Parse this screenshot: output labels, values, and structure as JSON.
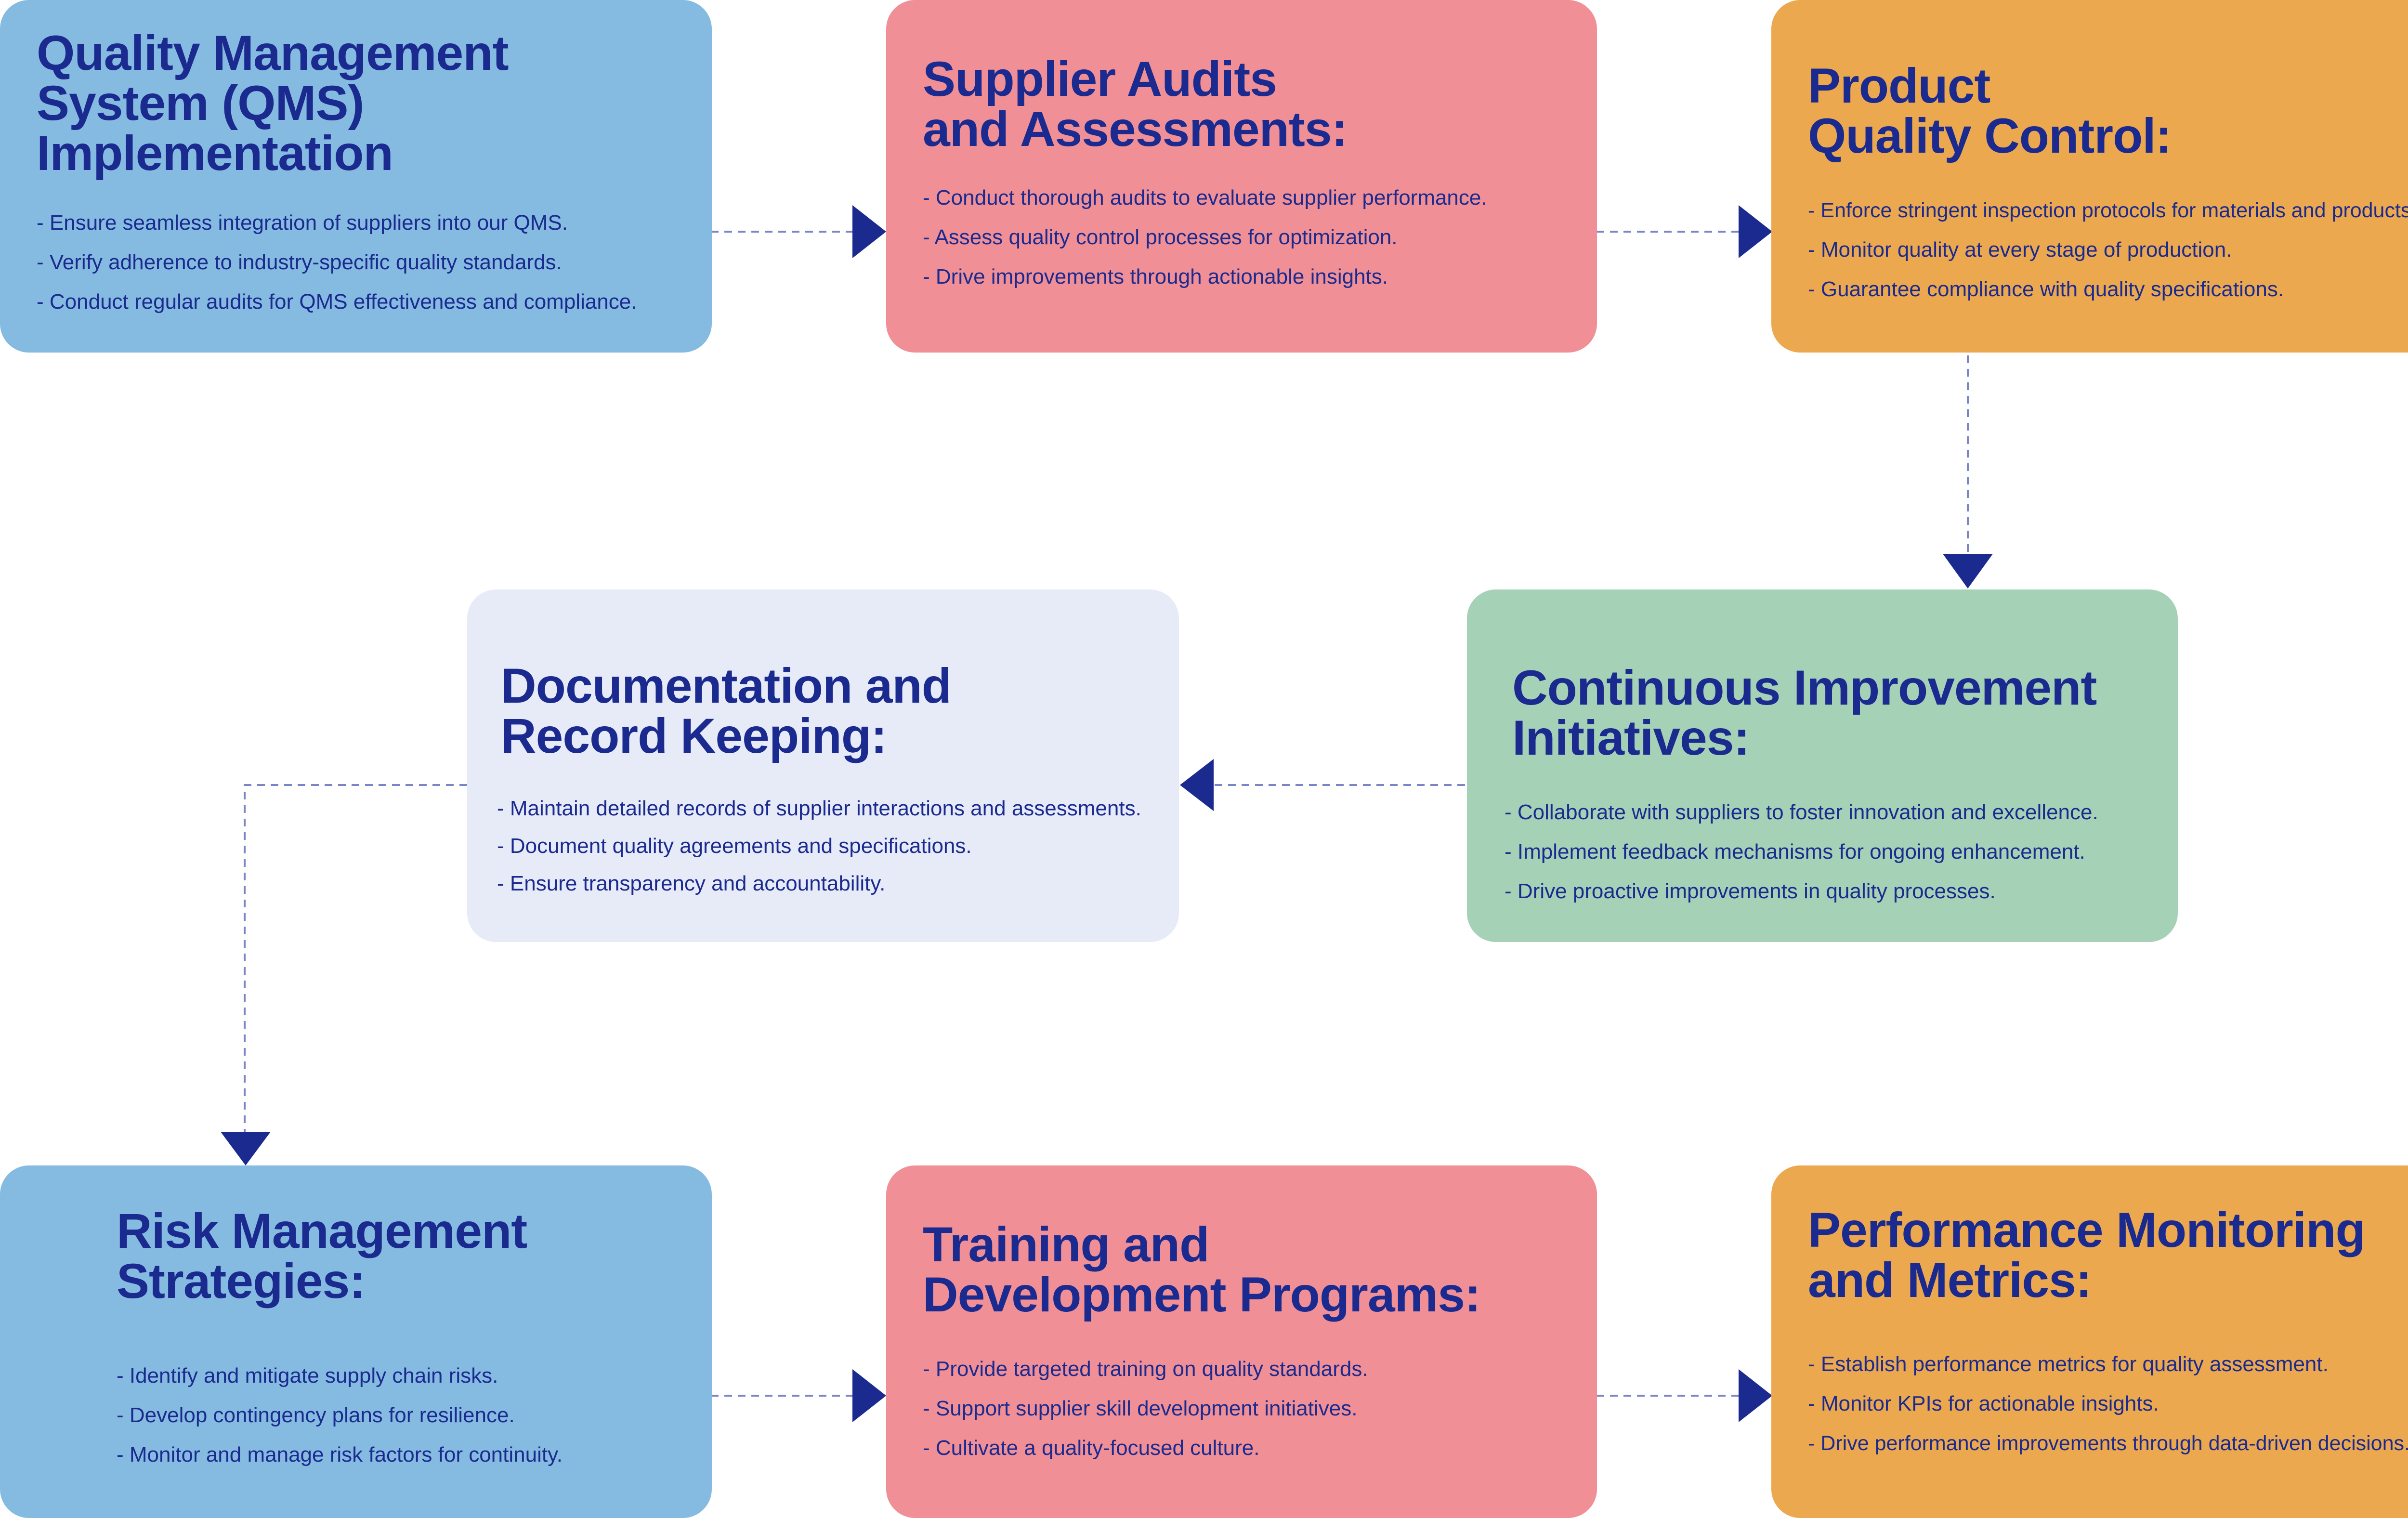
{
  "colors": {
    "ink": "#1b2a8f",
    "blue": "#85bbe0",
    "pink": "#f08f95",
    "orange": "#eba84e",
    "green": "#a5d1b6",
    "lavender": "#e7ebf8",
    "connector": "#7a85c8"
  },
  "cards": [
    {
      "title": "Quality Management\nSystem (QMS)\nImplementation",
      "items": [
        "Ensure seamless integration of suppliers into our QMS.",
        "Verify adherence to industry-specific quality standards.",
        "Conduct regular audits for QMS effectiveness and compliance."
      ]
    },
    {
      "title": "Supplier Audits\nand Assessments:",
      "items": [
        "Conduct thorough audits to evaluate supplier performance.",
        "Assess quality control processes for optimization.",
        "Drive improvements through actionable insights."
      ]
    },
    {
      "title": "Product\nQuality Control:",
      "items": [
        "Enforce stringent inspection protocols for materials and products.",
        "Monitor quality at every stage of production.",
        "Guarantee compliance with quality specifications."
      ]
    },
    {
      "title": "Continuous Improvement\nInitiatives:",
      "items": [
        "Collaborate with suppliers to foster innovation and excellence.",
        "Implement feedback mechanisms for ongoing enhancement.",
        "Drive proactive improvements in quality processes."
      ]
    },
    {
      "title": "Documentation and\nRecord Keeping:",
      "items": [
        "Maintain detailed records of supplier interactions and assessments.",
        "Document quality agreements and specifications.",
        "Ensure transparency and accountability."
      ]
    },
    {
      "title": "Risk Management\nStrategies:",
      "items": [
        "Identify and mitigate supply chain risks.",
        "Develop contingency plans for resilience.",
        "Monitor and manage risk factors for continuity."
      ]
    },
    {
      "title": "Training and\nDevelopment Programs:",
      "items": [
        "Provide targeted training on quality standards.",
        "Support supplier skill development initiatives.",
        "Cultivate a quality-focused culture."
      ]
    },
    {
      "title": "Performance Monitoring\nand Metrics:",
      "items": [
        "Establish performance metrics for quality assessment.",
        "Monitor KPIs for actionable insights.",
        "Drive performance improvements through data-driven decisions."
      ]
    }
  ]
}
